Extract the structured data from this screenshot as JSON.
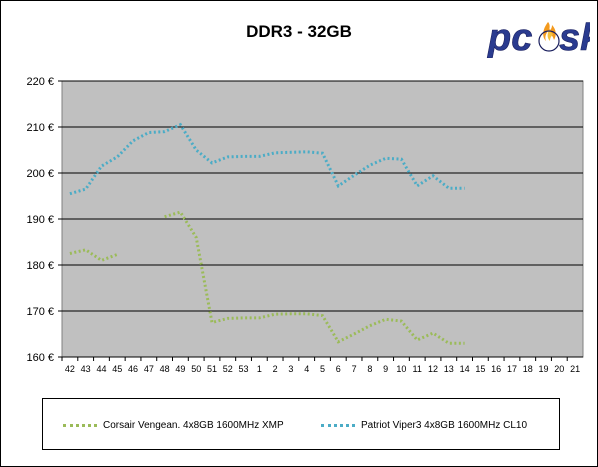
{
  "chart_data": {
    "type": "line",
    "title": "DDR3 - 32GB",
    "xlabel": "",
    "ylabel": "",
    "ylim": [
      160,
      220
    ],
    "yticks": [
      "160 €",
      "170 €",
      "180 €",
      "190 €",
      "200 €",
      "210 €",
      "220 €"
    ],
    "categories": [
      "42",
      "43",
      "44",
      "45",
      "46",
      "47",
      "48",
      "49",
      "50",
      "51",
      "52",
      "53",
      "1",
      "2",
      "3",
      "4",
      "5",
      "6",
      "7",
      "8",
      "9",
      "10",
      "11",
      "12",
      "13",
      "14",
      "15",
      "16",
      "17",
      "18",
      "19",
      "20",
      "21"
    ],
    "grid": "horizontal",
    "legend_position": "bottom",
    "series": [
      {
        "name": "Corsair Vengean. 4x8GB 1600MHz XMP",
        "color": "#9bbb59",
        "values": [
          182.5,
          183.3,
          181,
          182.3,
          null,
          null,
          190.5,
          191.5,
          186,
          167.5,
          168.4,
          168.5,
          168.5,
          169.3,
          169.4,
          169.4,
          169,
          163.3,
          165,
          166.8,
          168.2,
          167.8,
          163.7,
          165.2,
          163,
          163,
          null,
          null,
          null,
          null,
          null,
          null,
          null
        ]
      },
      {
        "name": "Patriot Viper3 4x8GB 1600MHz CL10",
        "color": "#4bacc6",
        "values": [
          195.5,
          196.5,
          201.5,
          203.5,
          207,
          208.8,
          209,
          210.5,
          205,
          202.2,
          203.5,
          203.6,
          203.6,
          204.4,
          204.5,
          204.6,
          204.3,
          197.2,
          199.5,
          201.7,
          203.2,
          203,
          197.2,
          199.4,
          196.7,
          196.7,
          null,
          null,
          null,
          null,
          null,
          null,
          null
        ]
      }
    ]
  },
  "logo": {
    "text": "pc sk"
  }
}
